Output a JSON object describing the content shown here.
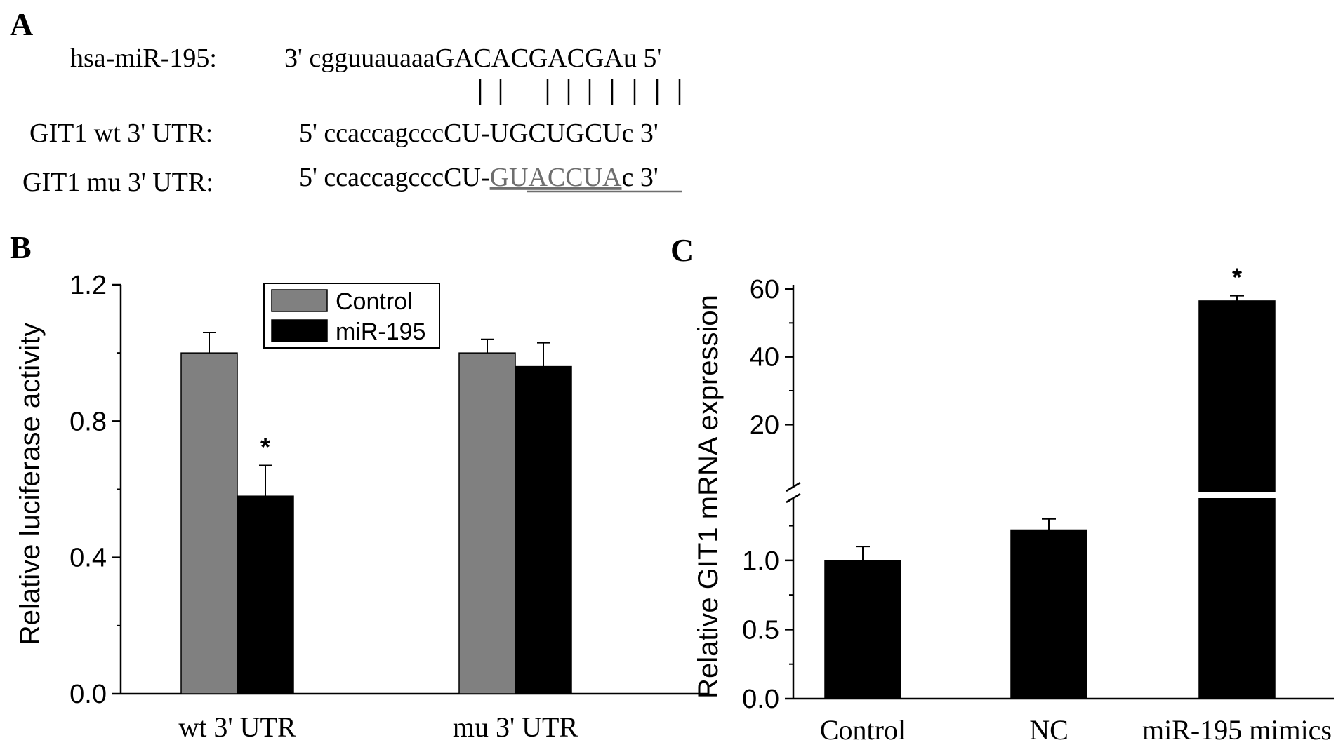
{
  "panel_a": {
    "letter": "A",
    "rows": [
      {
        "label": "hsa-miR-195:",
        "prefix": "3' cgguuauaaa",
        "core": "GACACGACGA",
        "suffix": "u 5'"
      },
      {
        "label": "GIT1 wt 3' UTR:",
        "prefix": "5' ccaccagccc",
        "core": "CU-UGCUGCU",
        "suffix": "c 3'"
      },
      {
        "label": "GIT1 mu 3' UTR:",
        "prefix": "5' ccaccagcccCU-",
        "core": "GUACCUA",
        "suffix": "c 3'"
      }
    ]
  },
  "chart_data": [
    {
      "type": "bar",
      "panel": "B",
      "ylabel": "Relative luciferase activity",
      "xlabel": "",
      "categories": [
        "wt 3' UTR",
        "mu 3' UTR"
      ],
      "series": [
        {
          "name": "Control",
          "values": [
            1.0,
            1.0
          ],
          "errors": [
            0.06,
            0.04
          ],
          "color": "#808080"
        },
        {
          "name": "miR-195",
          "values": [
            0.58,
            0.96
          ],
          "errors": [
            0.09,
            0.07
          ],
          "color": "#000000"
        }
      ],
      "significance": [
        {
          "category": 0,
          "series": 1,
          "mark": "*"
        }
      ],
      "ylim": [
        0,
        1.2
      ],
      "yticks": [
        "0.0",
        "0.4",
        "0.8",
        "1.2"
      ],
      "legend_position": "top-center",
      "grid": false
    },
    {
      "type": "bar",
      "panel": "C",
      "ylabel": "Relative GIT1 mRNA expression",
      "xlabel": "",
      "categories": [
        "Control",
        "NC",
        "miR-195 mimics"
      ],
      "values": [
        1.0,
        1.22,
        56.5
      ],
      "errors": [
        0.1,
        0.08,
        1.5
      ],
      "color": "#000000",
      "significance": [
        {
          "category": 2,
          "mark": "*"
        }
      ],
      "axis_break": true,
      "lower_ylim": [
        0,
        1.4
      ],
      "upper_ylim": [
        0,
        60
      ],
      "lower_yticks": [
        "0.0",
        "0.5",
        "1.0"
      ],
      "upper_yticks": [
        "20",
        "40",
        "60"
      ],
      "grid": false
    }
  ]
}
